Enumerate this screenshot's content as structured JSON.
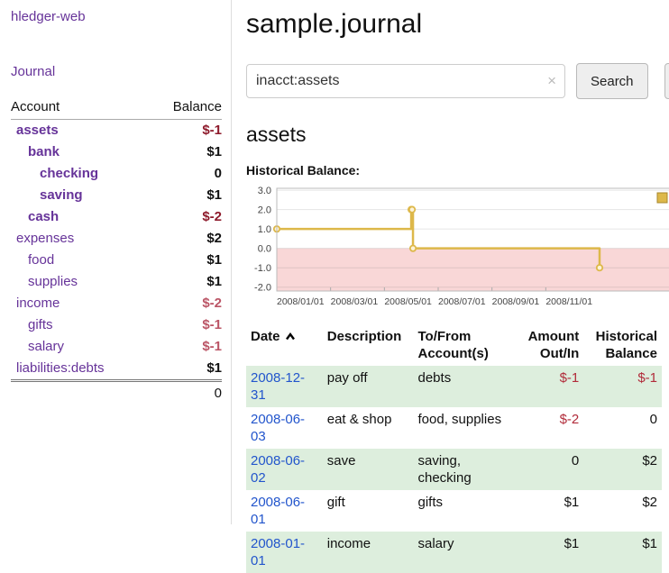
{
  "app": {
    "title": "hledger-web"
  },
  "colors": {
    "accent_purple": "#663399",
    "negative_strong": "#8e1b2c",
    "negative_soft": "#bb5566",
    "register_negative": "#b12b3a",
    "row_stripe_green": "#ddeedd",
    "date_link_blue": "#2255cc"
  },
  "sidebar": {
    "journal_link": "Journal",
    "accounts": {
      "headers": {
        "account": "Account",
        "balance": "Balance"
      },
      "rows": [
        {
          "name": "assets",
          "balance": "$-1",
          "indent": 0,
          "emph": true,
          "negative": "strong"
        },
        {
          "name": "bank",
          "balance": "$1",
          "indent": 1,
          "emph": true,
          "negative": null
        },
        {
          "name": "checking",
          "balance": "0",
          "indent": 2,
          "emph": true,
          "negative": null
        },
        {
          "name": "saving",
          "balance": "$1",
          "indent": 2,
          "emph": true,
          "negative": null
        },
        {
          "name": "cash",
          "balance": "$-2",
          "indent": 1,
          "emph": true,
          "negative": "strong"
        },
        {
          "name": "expenses",
          "balance": "$2",
          "indent": 0,
          "emph": false,
          "negative": null
        },
        {
          "name": "food",
          "balance": "$1",
          "indent": 1,
          "emph": false,
          "negative": null
        },
        {
          "name": "supplies",
          "balance": "$1",
          "indent": 1,
          "emph": false,
          "negative": null
        },
        {
          "name": "income",
          "balance": "$-2",
          "indent": 0,
          "emph": false,
          "negative": "soft"
        },
        {
          "name": "gifts",
          "balance": "$-1",
          "indent": 1,
          "emph": false,
          "negative": "soft"
        },
        {
          "name": "salary",
          "balance": "$-1",
          "indent": 1,
          "emph": false,
          "negative": "soft"
        },
        {
          "name": "liabilities:debts",
          "balance": "$1",
          "indent": 0,
          "emph": false,
          "negative": null
        }
      ],
      "total": "0"
    }
  },
  "main": {
    "title": "sample.journal",
    "search": {
      "value": "inacct:assets",
      "clear_icon": "×",
      "button_label": "Search",
      "help_label": "?"
    },
    "account_heading": "assets",
    "chart_label": "Historical Balance:"
  },
  "chart_data": {
    "type": "line",
    "subtype": "step",
    "title": "Historical Balance",
    "legend": [
      {
        "label": "$",
        "position": "top-right"
      }
    ],
    "x_ticks": [
      "2008/01/01",
      "2008/03/01",
      "2008/05/01",
      "2008/07/01",
      "2008/09/01",
      "2008/11/01"
    ],
    "y_ticks": [
      "3.0",
      "2.0",
      "1.0",
      "0.0",
      "-1.0",
      "-2.0"
    ],
    "ylim": [
      -2,
      3
    ],
    "xlabel": "",
    "ylabel": "",
    "grid": true,
    "points": [
      {
        "date": "2008-01-01",
        "balance": 1
      },
      {
        "date": "2008-06-01",
        "balance": 2
      },
      {
        "date": "2008-06-02",
        "balance": 2
      },
      {
        "date": "2008-06-03",
        "balance": 0
      },
      {
        "date": "2008-12-31",
        "balance": -1
      }
    ],
    "colors": {
      "line": "#ddb84a",
      "marker_fill": "#fdf3d8",
      "negative_region": "#f9d7d7",
      "plot_border": "#bbbbbb"
    }
  },
  "register": {
    "headers": {
      "date": "Date",
      "description": "Description",
      "accounts": "To/From\nAccount(s)",
      "amount": "Amount\nOut/In",
      "balance": "Historical\nBalance"
    },
    "sort": {
      "column": "Date",
      "direction": "ascending",
      "icon": "chevron-up"
    },
    "rows": [
      {
        "date": "2008-12-31",
        "description": "pay off",
        "accounts": "debts",
        "amount": "$-1",
        "amount_negative": true,
        "balance": "$-1",
        "balance_negative": true
      },
      {
        "date": "2008-06-03",
        "description": "eat & shop",
        "accounts": "food, supplies",
        "amount": "$-2",
        "amount_negative": true,
        "balance": "0",
        "balance_negative": false
      },
      {
        "date": "2008-06-02",
        "description": "save",
        "accounts": "saving,\nchecking",
        "amount": "0",
        "amount_negative": false,
        "balance": "$2",
        "balance_negative": false
      },
      {
        "date": "2008-06-01",
        "description": "gift",
        "accounts": "gifts",
        "amount": "$1",
        "amount_negative": false,
        "balance": "$2",
        "balance_negative": false
      },
      {
        "date": "2008-01-01",
        "description": "income",
        "accounts": "salary",
        "amount": "$1",
        "amount_negative": false,
        "balance": "$1",
        "balance_negative": false
      }
    ]
  }
}
